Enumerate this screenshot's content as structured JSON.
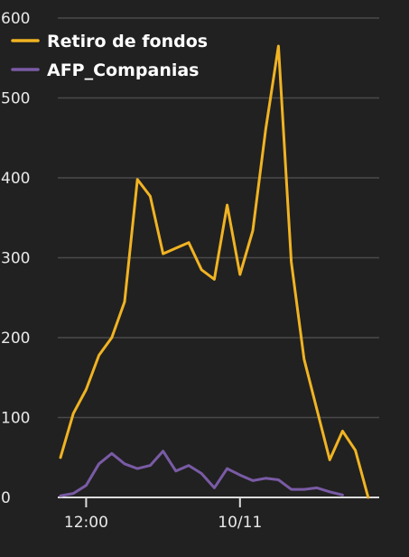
{
  "chart_data": {
    "type": "line",
    "y_ticks": [
      "0",
      "100",
      "200",
      "300",
      "400",
      "500",
      "600"
    ],
    "ylim": [
      0,
      600
    ],
    "x_ticks": [
      {
        "label": "12:00",
        "index": 2
      },
      {
        "label": "10/11",
        "index": 14
      }
    ],
    "grid": true,
    "legend": "top-left",
    "series": [
      {
        "name": "Retiro de fondos",
        "color": "#f0b323",
        "values": [
          50,
          105,
          135,
          178,
          200,
          245,
          398,
          377,
          305,
          312,
          319,
          285,
          273,
          366,
          279,
          334,
          460,
          565,
          295,
          173,
          110,
          47,
          83,
          59,
          0
        ]
      },
      {
        "name": "AFP_Companias",
        "color": "#7a5ba6",
        "values": [
          2,
          5,
          15,
          42,
          55,
          42,
          36,
          40,
          58,
          33,
          40,
          30,
          12,
          36,
          28,
          21,
          24,
          22,
          10,
          10,
          12,
          7,
          3
        ]
      }
    ]
  }
}
